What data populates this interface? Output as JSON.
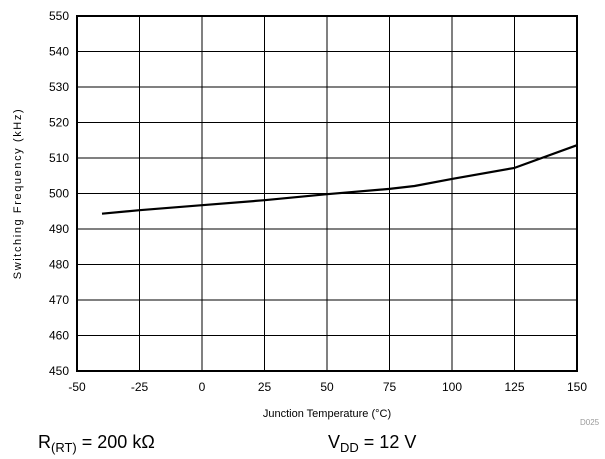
{
  "chart_data": {
    "type": "line",
    "xlabel": "Junction Temperature (°C)",
    "ylabel": "Switching Frequency (kHz)",
    "xlim": [
      -50,
      150
    ],
    "ylim": [
      450,
      550
    ],
    "x_ticks": [
      "-50",
      "-25",
      "0",
      "25",
      "50",
      "75",
      "100",
      "125",
      "150"
    ],
    "y_ticks": [
      "550",
      "540",
      "530",
      "520",
      "510",
      "500",
      "490",
      "480",
      "470",
      "460",
      "450"
    ],
    "grid": true,
    "series": [
      {
        "x": [
          -40,
          -25,
          0,
          25,
          50,
          75,
          85,
          100,
          125,
          150
        ],
        "values": [
          494.3,
          495.3,
          496.7,
          498.1,
          499.8,
          501.3,
          502.1,
          504.1,
          507.2,
          513.6
        ]
      }
    ],
    "code_label": "D025",
    "conditions": {
      "rt": {
        "prefix": "R",
        "sub": "(RT)",
        "suffix": " = 200 kΩ"
      },
      "vdd": {
        "prefix": "V",
        "sub": "DD",
        "suffix": " = 12 V"
      }
    },
    "colors": {
      "line": "#000000",
      "grid": "#000000",
      "code": "#9a9a9a"
    }
  }
}
